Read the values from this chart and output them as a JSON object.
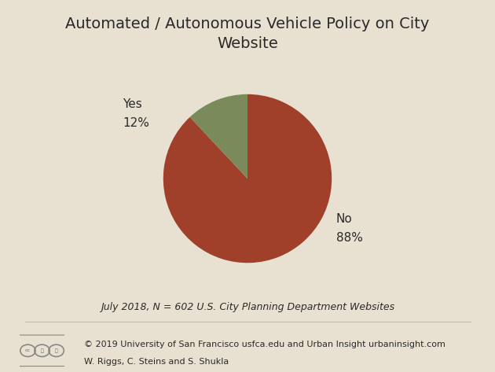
{
  "title": "Automated / Autonomous Vehicle Policy on City\nWebsite",
  "slices": [
    88,
    12
  ],
  "labels": [
    "No",
    "Yes"
  ],
  "colors": [
    "#a0402a",
    "#7a8a5a"
  ],
  "background_color": "#e8e0d0",
  "footnote": "July 2018, N = 602 U.S. City Planning Department Websites",
  "credit_line1": "© 2019 University of San Francisco usfca.edu and Urban Insight urbaninsight.com",
  "credit_line2": "W. Riggs, C. Steins and S. Shukla",
  "title_fontsize": 14,
  "label_fontsize": 11,
  "pct_fontsize": 11,
  "footnote_fontsize": 9,
  "credit_fontsize": 8,
  "startangle": 90,
  "text_color": "#2a2a2a"
}
